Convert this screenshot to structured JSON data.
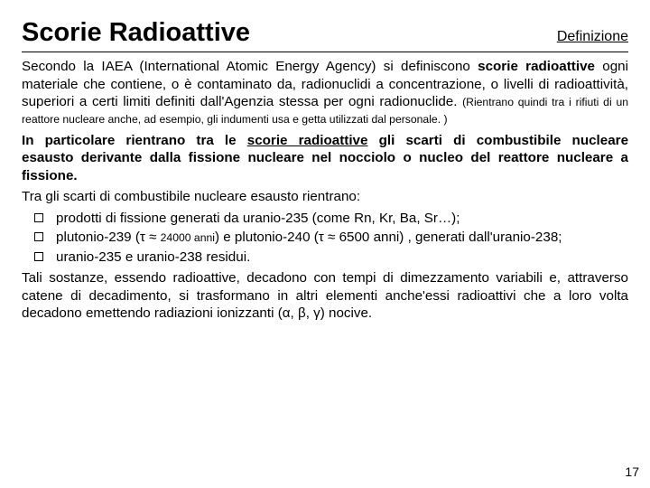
{
  "header": {
    "title": "Scorie Radioattive",
    "subtitle": "Definizione"
  },
  "para1": {
    "t1": "Secondo la IAEA (International Atomic Energy Agency) si definiscono ",
    "bold1": "scorie radioattive",
    "t2": " ogni materiale che contiene, o è contaminato da, radionuclidi a concentrazione, o livelli di radioattività, superiori a certi limiti definiti dall'Agenzia stessa per ogni radionuclide. ",
    "small": "(Rientrano quindi tra i rifiuti di un reattore nucleare anche, ad esempio, gli indumenti usa e getta utilizzati dal personale. )"
  },
  "para2": {
    "b1": "In particolare rientrano tra le ",
    "u1": "scorie radioattive",
    "b2": " gli scarti di combustibile nucleare esausto derivante dalla fissione nucleare nel nocciolo o nucleo del reattore nucleare a fissione."
  },
  "intro_list": "Tra gli scarti di combustibile nucleare esausto rientrano:",
  "bullets": {
    "b1": "prodotti di fissione generati da uranio-235 (come Rn, Kr, Ba, Sr…);",
    "b2_a": "plutonio-239 (τ ≈ ",
    "b2_small": "24000 anni",
    "b2_b": ") e plutonio-240 (τ ≈ 6500 anni) , generati dall'uranio-238;",
    "b3": "uranio-235 e uranio-238 residui."
  },
  "para3": "Tali sostanze, essendo radioattive, decadono con tempi di dimezzamento variabili e, attraverso catene di decadimento, si trasformano in altri elementi anche'essi radioattivi che a loro volta decadono emettendo radiazioni ionizzanti (α, β, γ) nocive.",
  "page_number": "17"
}
